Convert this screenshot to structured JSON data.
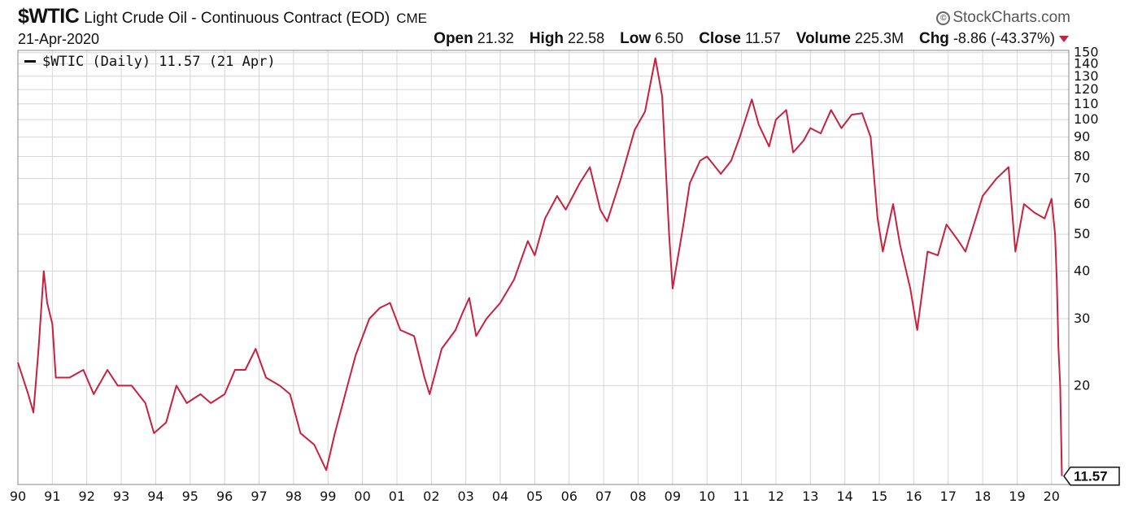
{
  "header": {
    "symbol": "$WTIC",
    "description": "Light Crude Oil - Continuous Contract (EOD)",
    "exchange": "CME",
    "date": "21-Apr-2020",
    "logo": "StockCharts.com",
    "open_label": "Open",
    "open_value": "21.32",
    "high_label": "High",
    "high_value": "22.58",
    "low_label": "Low",
    "low_value": "6.50",
    "close_label": "Close",
    "close_value": "11.57",
    "volume_label": "Volume",
    "volume_value": "225.3M",
    "chg_label": "Chg",
    "chg_value": "-8.86 (-43.37%)"
  },
  "colors": {
    "line": "#c8213f",
    "grid": "#d6d6d6",
    "accent_down": "#c0263d"
  },
  "chart_data": {
    "type": "line",
    "log_scale": true,
    "grid": true,
    "legend": {
      "placement": "top-left",
      "text": "$WTIC (Daily) 11.57 (21 Apr)"
    },
    "x_ticks": [
      "90",
      "91",
      "92",
      "93",
      "94",
      "95",
      "96",
      "97",
      "98",
      "99",
      "00",
      "01",
      "02",
      "03",
      "04",
      "05",
      "06",
      "07",
      "08",
      "09",
      "10",
      "11",
      "12",
      "13",
      "14",
      "15",
      "16",
      "17",
      "18",
      "19",
      "20"
    ],
    "y_ticks": [
      20,
      30,
      40,
      50,
      60,
      70,
      80,
      90,
      100,
      110,
      120,
      130,
      140,
      150
    ],
    "ylim": [
      11,
      152
    ],
    "last_value": "11.57",
    "series": [
      {
        "points": [
          [
            1990.0,
            23
          ],
          [
            1990.3,
            19
          ],
          [
            1990.45,
            17
          ],
          [
            1990.6,
            25
          ],
          [
            1990.75,
            40
          ],
          [
            1990.85,
            33
          ],
          [
            1991.0,
            29
          ],
          [
            1991.1,
            21
          ],
          [
            1991.5,
            21
          ],
          [
            1991.9,
            22
          ],
          [
            1992.2,
            19
          ],
          [
            1992.6,
            22
          ],
          [
            1992.9,
            20
          ],
          [
            1993.3,
            20
          ],
          [
            1993.7,
            18
          ],
          [
            1993.95,
            15
          ],
          [
            1994.3,
            16
          ],
          [
            1994.6,
            20
          ],
          [
            1994.9,
            18
          ],
          [
            1995.3,
            19
          ],
          [
            1995.6,
            18
          ],
          [
            1996.0,
            19
          ],
          [
            1996.3,
            22
          ],
          [
            1996.6,
            22
          ],
          [
            1996.9,
            25
          ],
          [
            1997.2,
            21
          ],
          [
            1997.6,
            20
          ],
          [
            1997.9,
            19
          ],
          [
            1998.2,
            15
          ],
          [
            1998.6,
            14
          ],
          [
            1998.95,
            12
          ],
          [
            1999.2,
            15
          ],
          [
            1999.5,
            19
          ],
          [
            1999.8,
            24
          ],
          [
            2000.2,
            30
          ],
          [
            2000.5,
            32
          ],
          [
            2000.8,
            33
          ],
          [
            2001.1,
            28
          ],
          [
            2001.5,
            27
          ],
          [
            2001.8,
            21
          ],
          [
            2001.95,
            19
          ],
          [
            2002.3,
            25
          ],
          [
            2002.7,
            28
          ],
          [
            2002.9,
            31
          ],
          [
            2003.1,
            34
          ],
          [
            2003.3,
            27
          ],
          [
            2003.6,
            30
          ],
          [
            2004.0,
            33
          ],
          [
            2004.4,
            38
          ],
          [
            2004.8,
            48
          ],
          [
            2005.0,
            44
          ],
          [
            2005.3,
            55
          ],
          [
            2005.65,
            63
          ],
          [
            2005.9,
            58
          ],
          [
            2006.3,
            68
          ],
          [
            2006.6,
            75
          ],
          [
            2006.9,
            58
          ],
          [
            2007.1,
            54
          ],
          [
            2007.5,
            70
          ],
          [
            2007.9,
            94
          ],
          [
            2008.2,
            105
          ],
          [
            2008.5,
            145
          ],
          [
            2008.7,
            115
          ],
          [
            2008.9,
            50
          ],
          [
            2009.0,
            36
          ],
          [
            2009.3,
            52
          ],
          [
            2009.5,
            68
          ],
          [
            2009.8,
            78
          ],
          [
            2010.0,
            80
          ],
          [
            2010.4,
            72
          ],
          [
            2010.7,
            78
          ],
          [
            2010.95,
            90
          ],
          [
            2011.3,
            113
          ],
          [
            2011.5,
            97
          ],
          [
            2011.8,
            85
          ],
          [
            2012.0,
            100
          ],
          [
            2012.3,
            106
          ],
          [
            2012.5,
            82
          ],
          [
            2012.8,
            88
          ],
          [
            2013.0,
            95
          ],
          [
            2013.3,
            92
          ],
          [
            2013.6,
            106
          ],
          [
            2013.9,
            95
          ],
          [
            2014.2,
            103
          ],
          [
            2014.5,
            104
          ],
          [
            2014.75,
            90
          ],
          [
            2014.95,
            55
          ],
          [
            2015.1,
            45
          ],
          [
            2015.4,
            60
          ],
          [
            2015.6,
            47
          ],
          [
            2015.9,
            36
          ],
          [
            2016.1,
            28
          ],
          [
            2016.4,
            45
          ],
          [
            2016.7,
            44
          ],
          [
            2016.95,
            53
          ],
          [
            2017.3,
            48
          ],
          [
            2017.5,
            45
          ],
          [
            2017.8,
            55
          ],
          [
            2018.0,
            63
          ],
          [
            2018.4,
            70
          ],
          [
            2018.75,
            75
          ],
          [
            2018.95,
            45
          ],
          [
            2019.2,
            60
          ],
          [
            2019.5,
            57
          ],
          [
            2019.8,
            55
          ],
          [
            2020.0,
            62
          ],
          [
            2020.1,
            50
          ],
          [
            2020.15,
            38
          ],
          [
            2020.2,
            25
          ],
          [
            2020.25,
            20
          ],
          [
            2020.3,
            11.57
          ]
        ]
      }
    ]
  }
}
